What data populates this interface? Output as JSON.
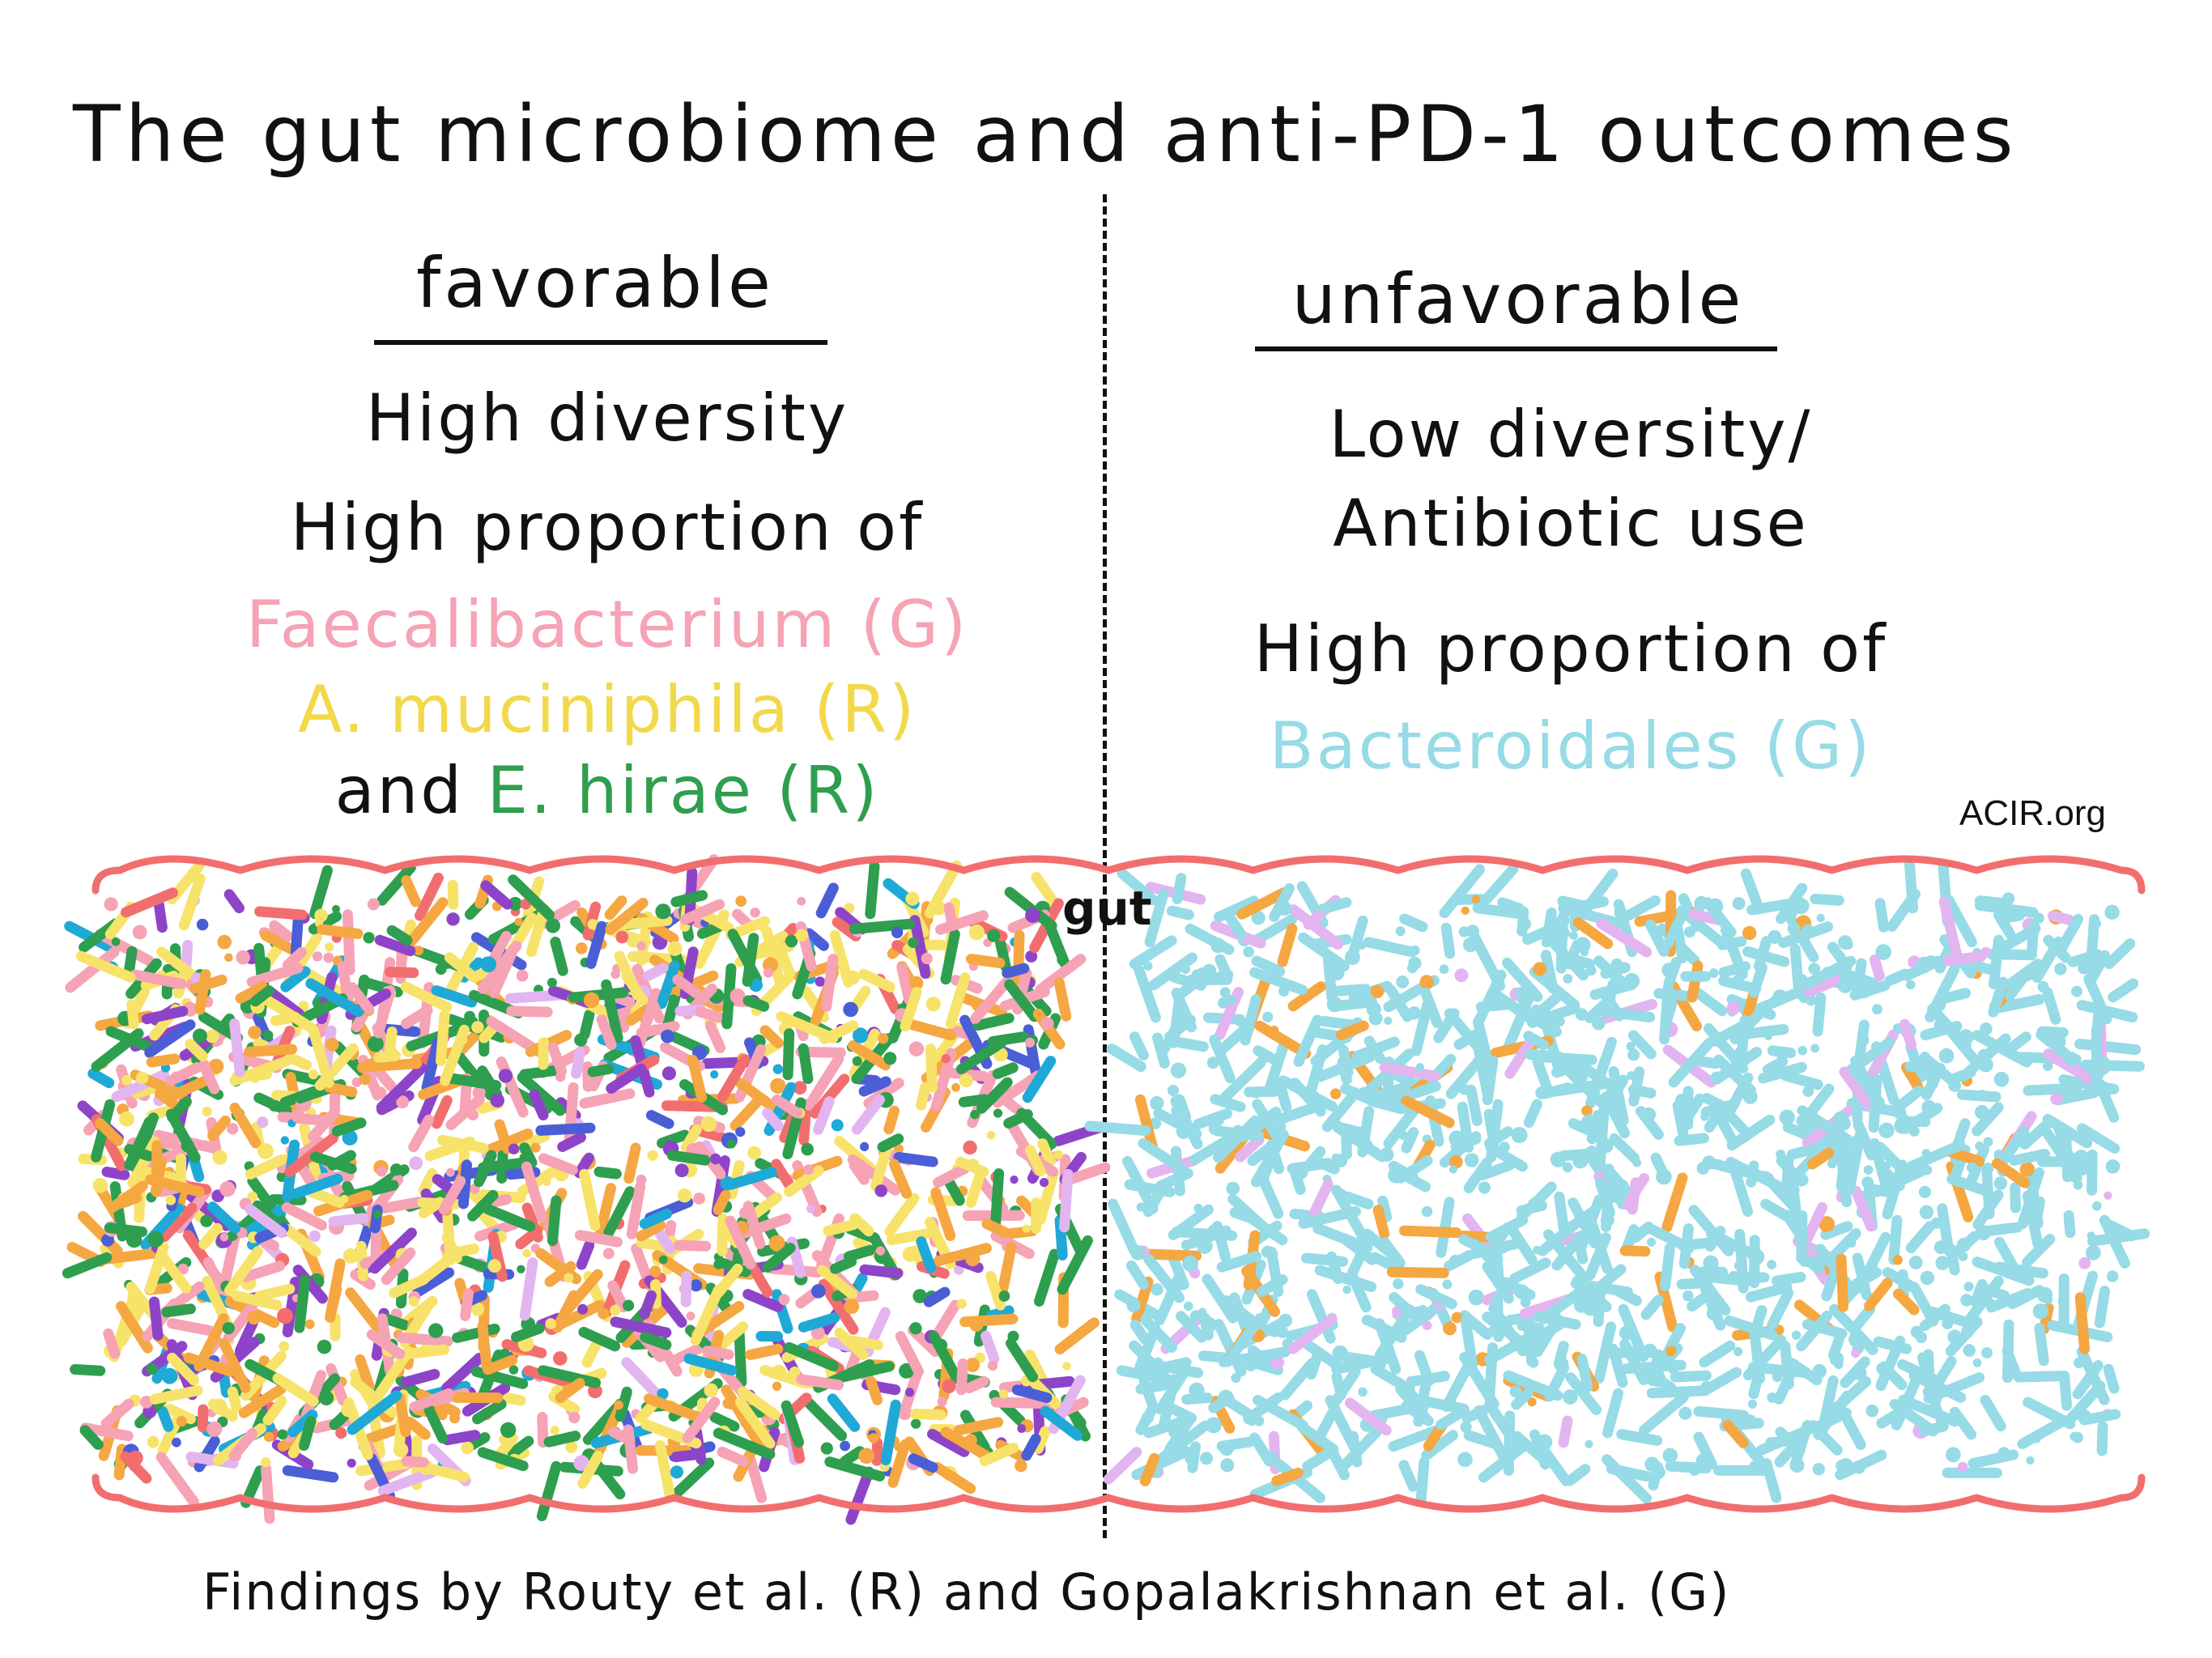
{
  "title": "The gut microbiome and anti-PD-1 outcomes",
  "favorable": {
    "heading": "favorable",
    "line1": "High diversity",
    "line2": "High proportion of",
    "faecalibacterium": "Faecalibacterium (G)",
    "akkermansia": "A. muciniphila (R)",
    "and_word": "and",
    "hirae": "E. hirae (R)"
  },
  "unfavorable": {
    "heading": "unfavorable",
    "line1": "Low diversity/",
    "line2": "Antibiotic use",
    "line3": "High proportion of",
    "bacteroidales": "Bacteroidales (G)"
  },
  "source": "ACIR.org",
  "gut_label": "gut",
  "footer": "Findings by Routy et al. (R) and Gopalakrishnan et al. (G)",
  "colors": {
    "outline": "#f26e6e",
    "faecalibacterium": "#f5a3b5",
    "akkermansia": "#f7e36a",
    "hirae": "#2e9e4f",
    "bacteroidales": "#96dbe6",
    "extra": [
      "#f5a3b5",
      "#f7e36a",
      "#2e9e4f",
      "#f5a742",
      "#8e44c9",
      "#1fa9d6",
      "#4a5ed6",
      "#f26e6e",
      "#e3b5f0"
    ],
    "right_extra": [
      "#96dbe6",
      "#f5a742",
      "#e3b5f0"
    ]
  }
}
